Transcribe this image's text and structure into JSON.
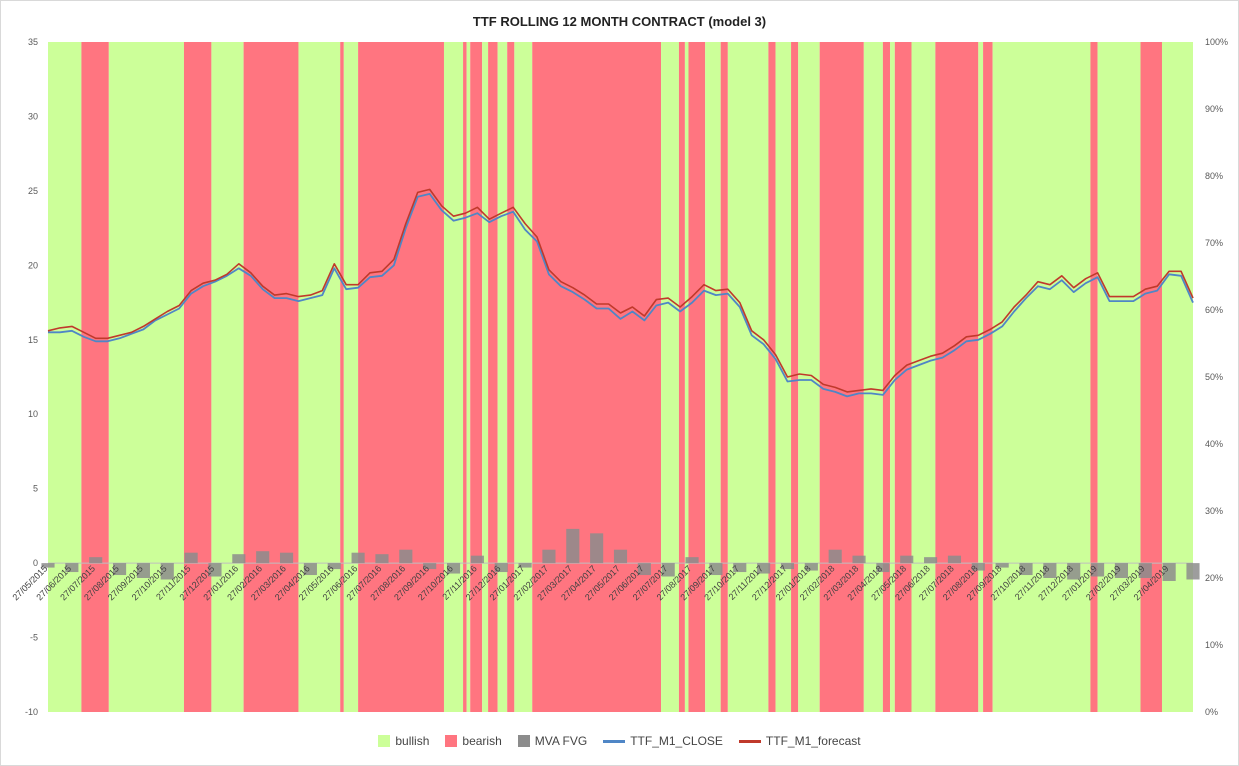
{
  "chart_data": {
    "type": "line",
    "title": "TTF ROLLING 12 MONTH CONTRACT (model 3)",
    "colors": {
      "bullish": "#ccff99",
      "bearish": "#ff7580",
      "mva_fvg": "#8c8c8c",
      "close": "#4f86c6",
      "forecast": "#c0392b"
    },
    "y_left": {
      "min": -10,
      "max": 35,
      "step": 5,
      "ticks": [
        "-10",
        "-5",
        "0",
        "5",
        "10",
        "15",
        "20",
        "25",
        "30",
        "35"
      ]
    },
    "y_right": {
      "ticks": [
        "0%",
        "10%",
        "20%",
        "30%",
        "40%",
        "50%",
        "60%",
        "70%",
        "80%",
        "90%",
        "100%"
      ]
    },
    "x_labels": [
      "27/05/2015",
      "27/06/2015",
      "27/07/2015",
      "27/08/2015",
      "27/09/2015",
      "27/10/2015",
      "27/11/2015",
      "27/12/2015",
      "27/01/2016",
      "27/02/2016",
      "27/03/2016",
      "27/04/2016",
      "27/05/2016",
      "27/06/2016",
      "27/07/2016",
      "27/08/2016",
      "27/09/2016",
      "27/10/2016",
      "27/11/2016",
      "27/12/2016",
      "27/01/2017",
      "27/02/2017",
      "27/03/2017",
      "27/04/2017",
      "27/05/2017",
      "27/06/2017",
      "27/07/2017",
      "27/08/2017",
      "27/09/2017",
      "27/10/2017",
      "27/11/2017",
      "27/12/2017",
      "27/01/2018",
      "27/02/2018",
      "27/03/2018",
      "27/04/2018",
      "27/05/2018",
      "27/06/2018",
      "27/07/2018",
      "27/08/2018",
      "27/09/2018",
      "27/10/2018",
      "27/11/2018",
      "27/12/2018",
      "27/01/2019",
      "27/02/2019",
      "27/03/2019",
      "27/04/2019"
    ],
    "x_range": [
      0,
      48
    ],
    "regimes": [
      {
        "start": 0.0,
        "end": 1.4,
        "state": "bullish"
      },
      {
        "start": 1.4,
        "end": 2.55,
        "state": "bearish"
      },
      {
        "start": 2.55,
        "end": 5.7,
        "state": "bullish"
      },
      {
        "start": 5.7,
        "end": 6.85,
        "state": "bearish"
      },
      {
        "start": 6.85,
        "end": 8.2,
        "state": "bullish"
      },
      {
        "start": 8.2,
        "end": 10.5,
        "state": "bearish"
      },
      {
        "start": 10.5,
        "end": 12.25,
        "state": "bullish"
      },
      {
        "start": 12.25,
        "end": 12.4,
        "state": "bearish"
      },
      {
        "start": 12.4,
        "end": 13.0,
        "state": "bullish"
      },
      {
        "start": 13.0,
        "end": 16.6,
        "state": "bearish"
      },
      {
        "start": 16.6,
        "end": 17.4,
        "state": "bullish"
      },
      {
        "start": 17.4,
        "end": 17.55,
        "state": "bearish"
      },
      {
        "start": 17.55,
        "end": 17.7,
        "state": "bullish"
      },
      {
        "start": 17.7,
        "end": 18.2,
        "state": "bearish"
      },
      {
        "start": 18.2,
        "end": 18.45,
        "state": "bullish"
      },
      {
        "start": 18.45,
        "end": 18.85,
        "state": "bearish"
      },
      {
        "start": 18.85,
        "end": 19.25,
        "state": "bullish"
      },
      {
        "start": 19.25,
        "end": 19.55,
        "state": "bearish"
      },
      {
        "start": 19.55,
        "end": 20.3,
        "state": "bullish"
      },
      {
        "start": 20.3,
        "end": 25.7,
        "state": "bearish"
      },
      {
        "start": 25.7,
        "end": 26.45,
        "state": "bullish"
      },
      {
        "start": 26.45,
        "end": 26.7,
        "state": "bearish"
      },
      {
        "start": 26.7,
        "end": 26.85,
        "state": "bullish"
      },
      {
        "start": 26.85,
        "end": 27.55,
        "state": "bearish"
      },
      {
        "start": 27.55,
        "end": 28.2,
        "state": "bullish"
      },
      {
        "start": 28.2,
        "end": 28.5,
        "state": "bearish"
      },
      {
        "start": 28.5,
        "end": 30.2,
        "state": "bullish"
      },
      {
        "start": 30.2,
        "end": 30.5,
        "state": "bearish"
      },
      {
        "start": 30.5,
        "end": 31.15,
        "state": "bullish"
      },
      {
        "start": 31.15,
        "end": 31.45,
        "state": "bearish"
      },
      {
        "start": 31.45,
        "end": 32.35,
        "state": "bullish"
      },
      {
        "start": 32.35,
        "end": 34.2,
        "state": "bearish"
      },
      {
        "start": 34.2,
        "end": 35.0,
        "state": "bullish"
      },
      {
        "start": 35.0,
        "end": 35.3,
        "state": "bearish"
      },
      {
        "start": 35.3,
        "end": 35.5,
        "state": "bullish"
      },
      {
        "start": 35.5,
        "end": 36.2,
        "state": "bearish"
      },
      {
        "start": 36.2,
        "end": 37.2,
        "state": "bullish"
      },
      {
        "start": 37.2,
        "end": 39.0,
        "state": "bearish"
      },
      {
        "start": 39.0,
        "end": 39.2,
        "state": "bullish"
      },
      {
        "start": 39.2,
        "end": 39.6,
        "state": "bearish"
      },
      {
        "start": 39.6,
        "end": 43.7,
        "state": "bullish"
      },
      {
        "start": 43.7,
        "end": 44.0,
        "state": "bearish"
      },
      {
        "start": 44.0,
        "end": 45.8,
        "state": "bullish"
      },
      {
        "start": 45.8,
        "end": 46.7,
        "state": "bearish"
      },
      {
        "start": 46.7,
        "end": 48.0,
        "state": "bullish"
      }
    ],
    "series": [
      {
        "name": "TTF_M1_CLOSE",
        "x": [
          0,
          0.5,
          1,
          1.5,
          2,
          2.5,
          3,
          3.5,
          4,
          4.5,
          5,
          5.5,
          6,
          6.5,
          7,
          7.5,
          8,
          8.5,
          9,
          9.5,
          10,
          10.5,
          11,
          11.5,
          12,
          12.5,
          13,
          13.5,
          14,
          14.5,
          15,
          15.5,
          16,
          16.5,
          17,
          17.5,
          18,
          18.5,
          19,
          19.5,
          20,
          20.5,
          21,
          21.5,
          22,
          22.5,
          23,
          23.5,
          24,
          24.5,
          25,
          25.5,
          26,
          26.5,
          27,
          27.5,
          28,
          28.5,
          29,
          29.5,
          30,
          30.5,
          31,
          31.5,
          32,
          32.5,
          33,
          33.5,
          34,
          34.5,
          35,
          35.5,
          36,
          36.5,
          37,
          37.5,
          38,
          38.5,
          39,
          39.5,
          40,
          40.5,
          41,
          41.5,
          42,
          42.5,
          43,
          43.5,
          44,
          44.5,
          45,
          45.5,
          46,
          46.5,
          47,
          47.5,
          48
        ],
        "values": [
          15.5,
          15.5,
          15.6,
          15.2,
          14.9,
          14.9,
          15.1,
          15.4,
          15.7,
          16.3,
          16.7,
          17.1,
          18.1,
          18.6,
          18.9,
          19.3,
          19.8,
          19.3,
          18.4,
          17.8,
          17.8,
          17.6,
          17.8,
          18.0,
          19.8,
          18.4,
          18.5,
          19.2,
          19.3,
          20.0,
          22.5,
          24.6,
          24.8,
          23.7,
          23.0,
          23.2,
          23.5,
          22.9,
          23.3,
          23.6,
          22.4,
          21.6,
          19.4,
          18.6,
          18.2,
          17.7,
          17.1,
          17.1,
          16.4,
          16.9,
          16.3,
          17.3,
          17.5,
          16.9,
          17.5,
          18.3,
          18.0,
          18.1,
          17.2,
          15.3,
          14.7,
          13.7,
          12.2,
          12.3,
          12.3,
          11.7,
          11.5,
          11.2,
          11.4,
          11.4,
          11.3,
          12.3,
          13.0,
          13.3,
          13.6,
          13.8,
          14.3,
          14.9,
          15.0,
          15.4,
          15.9,
          16.9,
          17.8,
          18.6,
          18.4,
          19.0,
          18.2,
          18.8,
          19.2,
          17.6,
          17.6,
          17.6,
          18.1,
          18.3,
          19.4,
          19.3,
          17.5
        ]
      },
      {
        "name": "TTF_M1_forecast",
        "x": [
          0,
          0.5,
          1,
          1.5,
          2,
          2.5,
          3,
          3.5,
          4,
          4.5,
          5,
          5.5,
          6,
          6.5,
          7,
          7.5,
          8,
          8.5,
          9,
          9.5,
          10,
          10.5,
          11,
          11.5,
          12,
          12.5,
          13,
          13.5,
          14,
          14.5,
          15,
          15.5,
          16,
          16.5,
          17,
          17.5,
          18,
          18.5,
          19,
          19.5,
          20,
          20.5,
          21,
          21.5,
          22,
          22.5,
          23,
          23.5,
          24,
          24.5,
          25,
          25.5,
          26,
          26.5,
          27,
          27.5,
          28,
          28.5,
          29,
          29.5,
          30,
          30.5,
          31,
          31.5,
          32,
          32.5,
          33,
          33.5,
          34,
          34.5,
          35,
          35.5,
          36,
          36.5,
          37,
          37.5,
          38,
          38.5,
          39,
          39.5,
          40,
          40.5,
          41,
          41.5,
          42,
          42.5,
          43,
          43.5,
          44,
          44.5,
          45,
          45.5,
          46,
          46.5,
          47,
          47.5,
          48
        ],
        "values": [
          15.6,
          15.8,
          15.9,
          15.5,
          15.1,
          15.1,
          15.3,
          15.5,
          15.9,
          16.4,
          16.9,
          17.3,
          18.3,
          18.8,
          19.0,
          19.4,
          20.1,
          19.5,
          18.6,
          18.0,
          18.1,
          17.9,
          18.0,
          18.3,
          20.1,
          18.7,
          18.7,
          19.5,
          19.6,
          20.4,
          22.8,
          24.9,
          25.1,
          24.0,
          23.3,
          23.5,
          23.9,
          23.1,
          23.5,
          23.9,
          22.8,
          21.9,
          19.7,
          18.9,
          18.5,
          18.0,
          17.4,
          17.4,
          16.8,
          17.2,
          16.6,
          17.7,
          17.8,
          17.2,
          17.9,
          18.7,
          18.3,
          18.4,
          17.5,
          15.6,
          15.0,
          14.0,
          12.5,
          12.7,
          12.6,
          12.0,
          11.8,
          11.5,
          11.6,
          11.7,
          11.6,
          12.6,
          13.3,
          13.6,
          13.9,
          14.1,
          14.6,
          15.2,
          15.3,
          15.7,
          16.2,
          17.2,
          18.0,
          18.9,
          18.7,
          19.3,
          18.5,
          19.1,
          19.5,
          17.9,
          17.9,
          17.9,
          18.4,
          18.6,
          19.6,
          19.6,
          17.8
        ]
      },
      {
        "name": "MVA FVG",
        "x": [
          0,
          1,
          2,
          3,
          4,
          5,
          6,
          7,
          8,
          9,
          10,
          11,
          12,
          13,
          14,
          15,
          16,
          17,
          18,
          19,
          20,
          21,
          22,
          23,
          24,
          25,
          26,
          27,
          28,
          29,
          30,
          31,
          32,
          33,
          34,
          35,
          36,
          37,
          38,
          39,
          40,
          41,
          42,
          43,
          44,
          45,
          46,
          47,
          48
        ],
        "values": [
          -0.3,
          -0.6,
          0.4,
          -0.8,
          -1.0,
          -1.1,
          0.7,
          -0.9,
          0.6,
          0.8,
          0.7,
          -0.8,
          -0.4,
          0.7,
          0.6,
          0.9,
          -0.4,
          -0.7,
          0.5,
          -0.6,
          -0.3,
          0.9,
          2.3,
          2.0,
          0.9,
          -0.8,
          -0.9,
          0.4,
          -0.8,
          -0.6,
          -0.7,
          -0.4,
          -0.5,
          0.9,
          0.5,
          -0.6,
          0.5,
          0.4,
          0.5,
          -0.5,
          -0.3,
          -0.8,
          -1.0,
          -1.1,
          -0.9,
          -1.0,
          -1.0,
          -1.2,
          -1.1
        ]
      }
    ],
    "legend": [
      {
        "label": "bullish",
        "kind": "box",
        "color": "#ccff99"
      },
      {
        "label": "bearish",
        "kind": "box",
        "color": "#ff7580"
      },
      {
        "label": "MVA FVG",
        "kind": "box",
        "color": "#8c8c8c"
      },
      {
        "label": "TTF_M1_CLOSE",
        "kind": "line",
        "color": "#4f86c6"
      },
      {
        "label": "TTF_M1_forecast",
        "kind": "line",
        "color": "#c0392b"
      }
    ],
    "legend_position": "bottom",
    "grid": false
  }
}
